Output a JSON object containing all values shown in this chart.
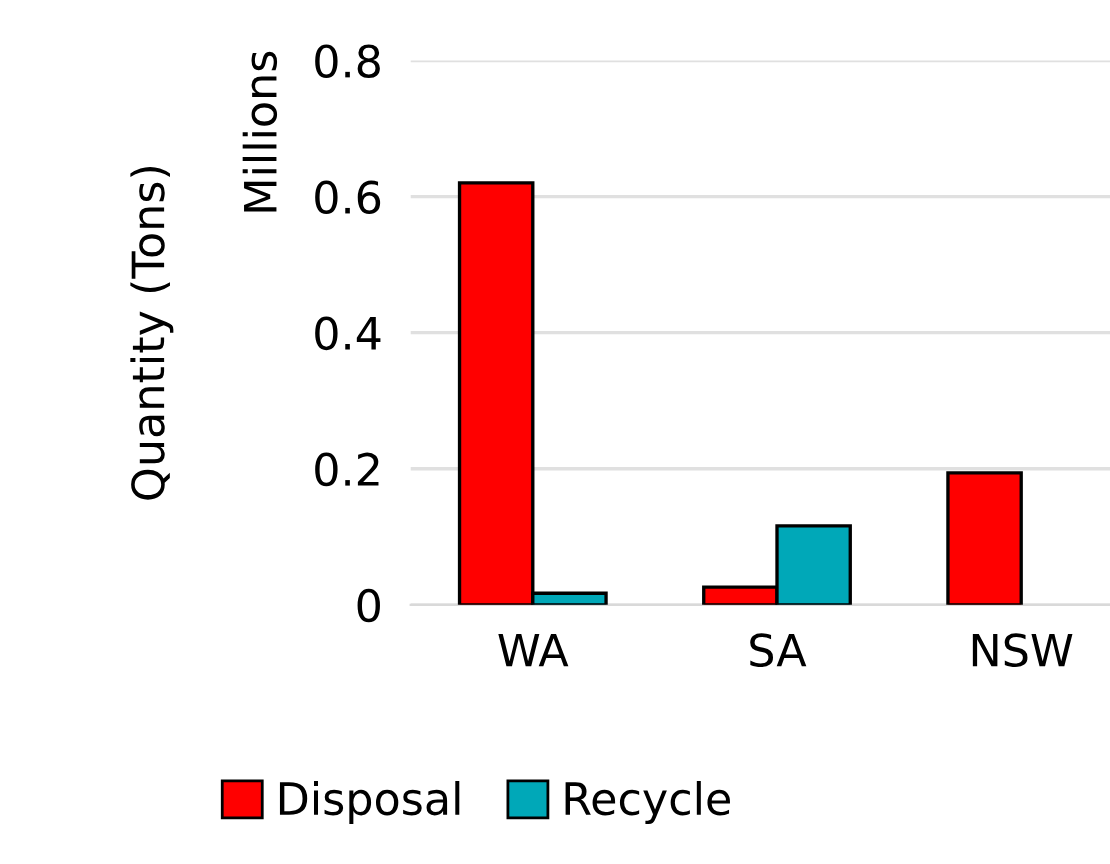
{
  "chart_data": {
    "type": "bar",
    "ylabel": "Quantity (Tons)",
    "annotations": [
      "Millions"
    ],
    "categories": [
      "WA",
      "SA",
      "NSW"
    ],
    "series": [
      {
        "name": "Disposal",
        "color": "#ff0000",
        "values": [
          0.62,
          0.026,
          0.194
        ]
      },
      {
        "name": "Recycle",
        "color": "#00a8b8",
        "values": [
          0.017,
          0.116,
          null
        ]
      }
    ],
    "ylim": [
      0,
      0.8
    ],
    "yticks": [
      0,
      0.2,
      0.4,
      0.6,
      0.8
    ],
    "grid": "y",
    "legend": "bottom"
  }
}
